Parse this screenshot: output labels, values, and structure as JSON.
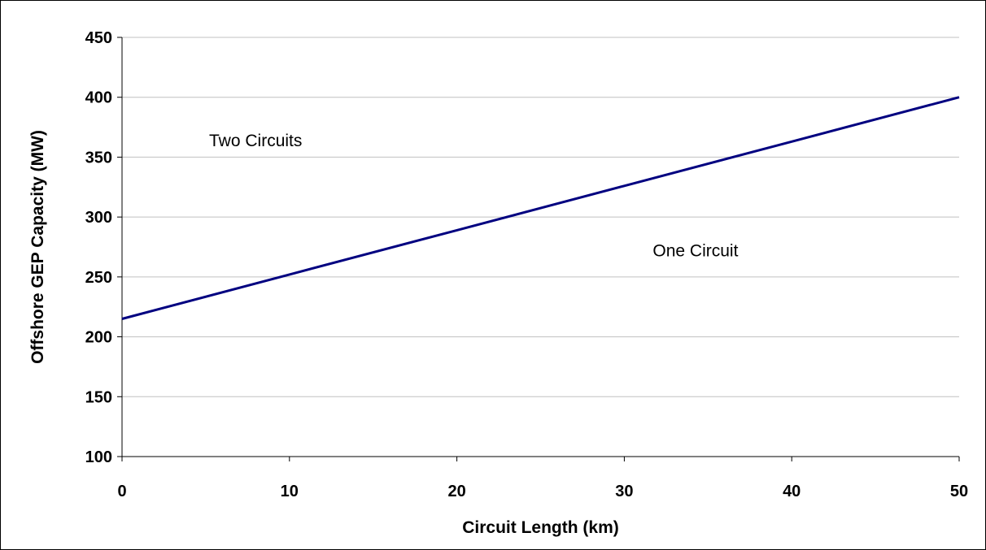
{
  "chart_data": {
    "type": "line",
    "title": "",
    "xlabel": "Circuit Length (km)",
    "ylabel": "Offshore GEP Capacity (MW)",
    "xlim": [
      0,
      50
    ],
    "ylim": [
      100,
      450
    ],
    "x_ticks": [
      0,
      10,
      20,
      30,
      40,
      50
    ],
    "y_ticks": [
      100,
      150,
      200,
      250,
      300,
      350,
      400,
      450
    ],
    "grid": "horizontal",
    "legend": "none",
    "series": [
      {
        "color": "#000080",
        "x": [
          0,
          10,
          20,
          30,
          40,
          50
        ],
        "y": [
          215,
          252,
          289,
          326,
          363,
          400
        ]
      }
    ],
    "annotations": [
      {
        "text": "Two Circuits",
        "x": 5.2,
        "y": 364
      },
      {
        "text": "One Circuit",
        "x": 31.7,
        "y": 272
      }
    ]
  }
}
